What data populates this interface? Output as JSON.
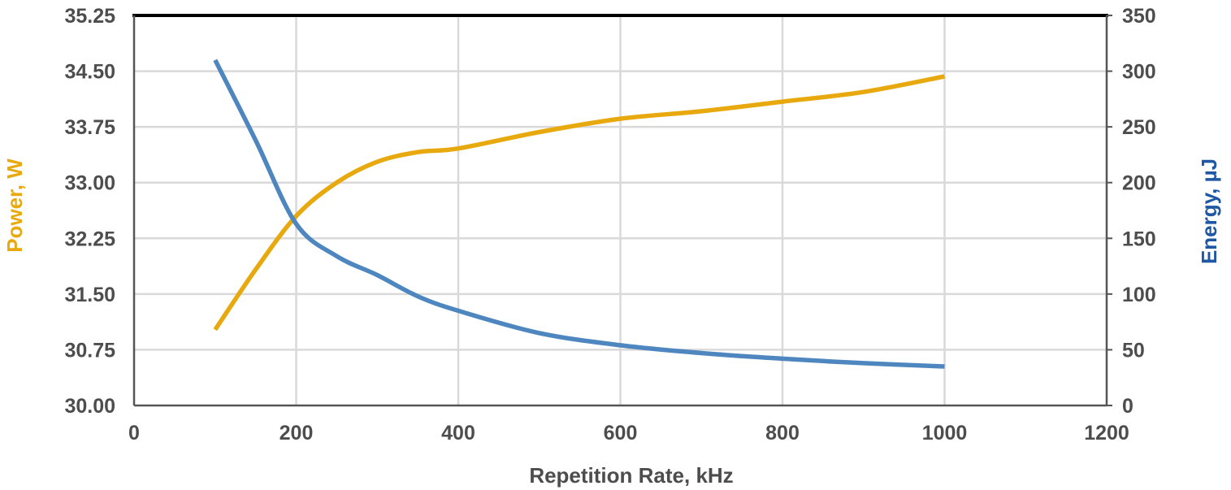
{
  "chart_data": {
    "type": "line",
    "title": "",
    "xlabel": "Repetition Rate, kHz",
    "ylabel_left": "Power, W",
    "ylabel_right": "Energy, µJ",
    "xlim": [
      0,
      1200
    ],
    "xticks": [
      "0",
      "200",
      "400",
      "600",
      "800",
      "1000",
      "1200"
    ],
    "ylim_left": [
      30.0,
      35.25
    ],
    "yticks_left": [
      "30.00",
      "30.75",
      "31.50",
      "32.25",
      "33.00",
      "33.75",
      "34.50",
      "35.25"
    ],
    "ylim_right": [
      0,
      350
    ],
    "yticks_right": [
      "0",
      "50",
      "100",
      "150",
      "200",
      "250",
      "300",
      "350"
    ],
    "grid": true,
    "colors": {
      "power": "#E8A90E",
      "energy": "#4E86BF",
      "power_label": "#E8A90E",
      "energy_label": "#1F57A3"
    },
    "series": [
      {
        "axis": "left",
        "x": [
          100,
          150,
          200,
          250,
          300,
          350,
          400,
          500,
          600,
          700,
          800,
          900,
          1000
        ],
        "values": [
          31.02,
          31.83,
          32.55,
          33.0,
          33.28,
          33.41,
          33.46,
          33.68,
          33.86,
          33.96,
          34.09,
          34.22,
          34.43
        ]
      },
      {
        "axis": "right",
        "x": [
          100,
          150,
          200,
          250,
          300,
          350,
          400,
          500,
          600,
          700,
          800,
          900,
          1000
        ],
        "values": [
          310,
          238,
          163,
          134,
          117,
          98,
          85,
          65,
          54,
          47,
          42,
          38,
          35
        ]
      }
    ]
  }
}
